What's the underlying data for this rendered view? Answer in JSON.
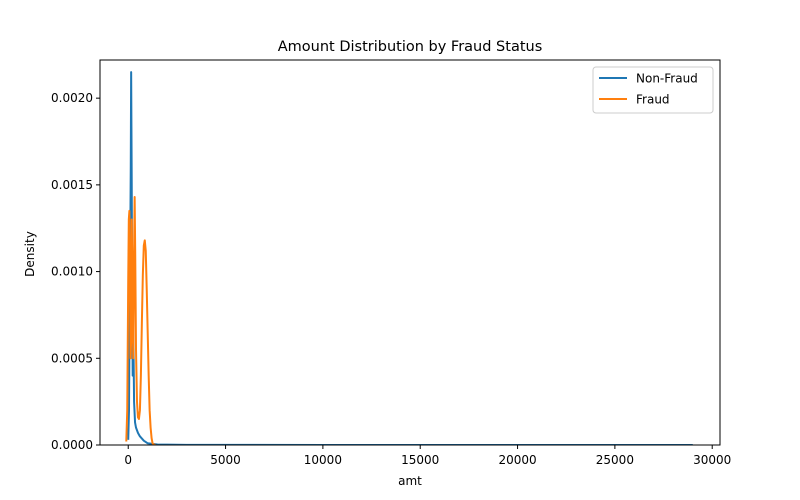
{
  "chart_data": {
    "type": "line",
    "title": "Amount Distribution by Fraud Status",
    "xlabel": "amt",
    "ylabel": "Density",
    "xlim": [
      -1450,
      30400
    ],
    "ylim": [
      0,
      0.00222
    ],
    "xticks": [
      0,
      5000,
      10000,
      15000,
      20000,
      25000,
      30000
    ],
    "xtick_labels": [
      "0",
      "5000",
      "10000",
      "15000",
      "20000",
      "25000",
      "30000"
    ],
    "yticks": [
      0,
      0.0005,
      0.001,
      0.0015,
      0.002
    ],
    "ytick_labels": [
      "0.0000",
      "0.0005",
      "0.0010",
      "0.0015",
      "0.0020"
    ],
    "grid": false,
    "legend_position": "top-right",
    "series": [
      {
        "name": "Non-Fraud",
        "color": "#1f77b4",
        "x": [
          0,
          40,
          80,
          100,
          130,
          150,
          180,
          200,
          230,
          250,
          300,
          350,
          400,
          500,
          600,
          800,
          1000,
          1500,
          2000,
          3000,
          5000,
          10000,
          15000,
          20000,
          25000,
          29000
        ],
        "y": [
          3e-05,
          0.0002,
          0.0009,
          0.0011,
          0.0016,
          0.00215,
          0.0015,
          0.0009,
          0.0004,
          0.0008,
          0.00025,
          0.00013,
          0.0001,
          7e-05,
          5e-05,
          2.5e-05,
          1e-05,
          3e-06,
          2e-06,
          1e-06,
          5e-07,
          2e-07,
          1e-07,
          5e-08,
          3e-08,
          2e-08
        ]
      },
      {
        "name": "Fraud",
        "color": "#ff7f0e",
        "x": [
          -100,
          -50,
          0,
          30,
          60,
          90,
          120,
          150,
          180,
          220,
          260,
          300,
          330,
          360,
          400,
          450,
          500,
          550,
          600,
          650,
          700,
          750,
          800,
          850,
          900,
          950,
          1000,
          1050,
          1100,
          1150,
          1200,
          1250,
          1300,
          1400
        ],
        "y": [
          2e-05,
          0.0002,
          0.00095,
          0.0013,
          0.00135,
          0.0009,
          0.0005,
          0.0006,
          0.0013,
          0.0009,
          0.0005,
          0.0011,
          0.00143,
          0.0011,
          0.00055,
          0.00025,
          0.00016,
          0.00015,
          0.0002,
          0.0004,
          0.0007,
          0.00098,
          0.00115,
          0.00118,
          0.00112,
          0.0009,
          0.00065,
          0.0004,
          0.0002,
          0.0001,
          4e-05,
          1e-05,
          3e-06,
          5e-07
        ]
      }
    ]
  }
}
